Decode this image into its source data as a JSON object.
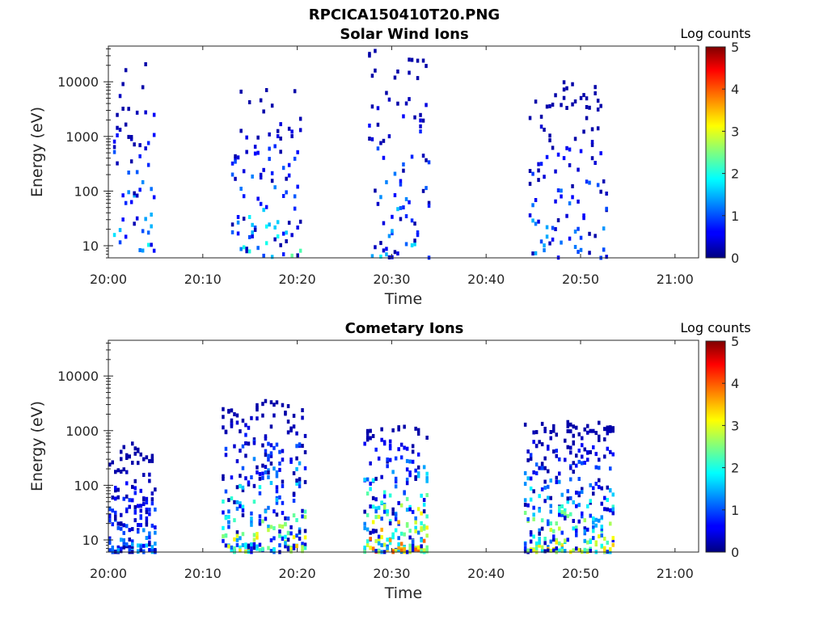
{
  "figure": {
    "title": "RPCICA150410T20.PNG"
  },
  "colorbar": {
    "label": "Log counts",
    "range": [
      0,
      5
    ],
    "ticks": [
      "0",
      "1",
      "2",
      "3",
      "4",
      "5"
    ],
    "colormap": "jet"
  },
  "chart_data": [
    {
      "type": "heatmap",
      "title": "Solar Wind Ions",
      "xlabel": "Time",
      "ylabel": "Energy (eV)",
      "x_ticks": [
        "20:00",
        "20:10",
        "20:20",
        "20:30",
        "20:40",
        "20:50",
        "21:00"
      ],
      "y_ticks": [
        "10",
        "100",
        "1000",
        "10000"
      ],
      "y_scale": "log",
      "ylim": [
        6,
        45000
      ],
      "xlim_minutes_after_20_00": [
        0,
        62.5
      ],
      "grid": false,
      "bursts": [
        {
          "t_min": 0.5,
          "t_max": 5.0,
          "e_min": 8,
          "e_max": 22000,
          "peak_log_counts": 1.8
        },
        {
          "t_min": 13.0,
          "t_max": 20.5,
          "e_min": 6,
          "e_max": 9000,
          "peak_log_counts": 2.0
        },
        {
          "t_min": 27.5,
          "t_max": 34.0,
          "e_min": 6,
          "e_max": 40000,
          "peak_log_counts": 1.8
        },
        {
          "t_min": 44.5,
          "t_max": 53.0,
          "e_min": 6,
          "e_max": 11000,
          "peak_log_counts": 1.6
        }
      ]
    },
    {
      "type": "heatmap",
      "title": "Cometary Ions",
      "xlabel": "Time",
      "ylabel": "Energy (eV)",
      "x_ticks": [
        "20:00",
        "20:10",
        "20:20",
        "20:30",
        "20:40",
        "20:50",
        "21:00"
      ],
      "y_ticks": [
        "10",
        "100",
        "1000",
        "10000"
      ],
      "y_scale": "log",
      "ylim": [
        6,
        45000
      ],
      "xlim_minutes_after_20_00": [
        0,
        62.5
      ],
      "grid": false,
      "bursts": [
        {
          "t_min": 0.0,
          "t_max": 5.0,
          "e_min": 6,
          "e_max": 600,
          "peak_log_counts": 1.5
        },
        {
          "t_min": 12.0,
          "t_max": 21.0,
          "e_min": 6,
          "e_max": 3500,
          "peak_log_counts": 3.0
        },
        {
          "t_min": 27.0,
          "t_max": 34.0,
          "e_min": 6,
          "e_max": 1300,
          "peak_log_counts": 3.8
        },
        {
          "t_min": 44.0,
          "t_max": 53.5,
          "e_min": 6,
          "e_max": 1500,
          "peak_log_counts": 3.0
        }
      ]
    }
  ]
}
